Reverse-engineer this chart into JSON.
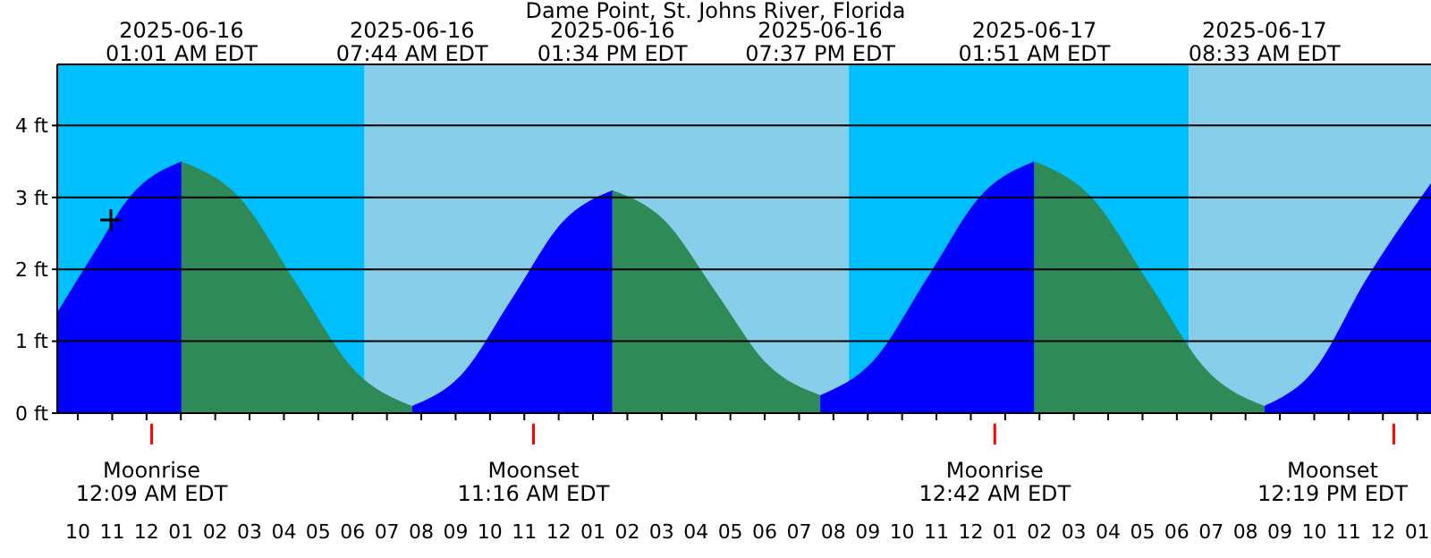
{
  "chart_data": {
    "type": "area",
    "title": "Dame Point, St. Johns River, Florida",
    "series": [
      {
        "color": "#0000ff",
        "x": [
          "2025-06-15T21:24",
          "2025-06-15T22:30",
          "2025-06-15T23:30",
          "2025-06-16T01:01"
        ],
        "values": [
          1.4,
          2.25,
          3.0,
          3.5
        ]
      },
      {
        "color": "#2e8b57",
        "x": [
          "2025-06-16T01:01",
          "2025-06-16T02:42",
          "2025-06-16T04:22",
          "2025-06-16T06:03",
          "2025-06-16T07:44"
        ],
        "values": [
          3.5,
          3.0,
          1.8,
          0.6,
          0.1
        ]
      },
      {
        "color": "#0000ff",
        "x": [
          "2025-06-16T07:44",
          "2025-06-16T09:11",
          "2025-06-16T10:39",
          "2025-06-16T12:07",
          "2025-06-16T13:34"
        ],
        "values": [
          0.1,
          0.54,
          1.6,
          2.66,
          3.1
        ]
      },
      {
        "color": "#2e8b57",
        "x": [
          "2025-06-16T13:34",
          "2025-06-16T15:05",
          "2025-06-16T16:35",
          "2025-06-16T18:06",
          "2025-06-16T19:37"
        ],
        "values": [
          3.1,
          2.68,
          1.68,
          0.67,
          0.25
        ]
      },
      {
        "color": "#0000ff",
        "x": [
          "2025-06-16T19:37",
          "2025-06-16T21:10",
          "2025-06-16T22:44",
          "2025-06-17T00:17",
          "2025-06-17T01:51"
        ],
        "values": [
          0.25,
          0.73,
          1.88,
          3.02,
          3.5
        ]
      },
      {
        "color": "#2e8b57",
        "x": [
          "2025-06-17T01:51",
          "2025-06-17T03:31",
          "2025-06-17T05:12",
          "2025-06-17T06:52",
          "2025-06-17T08:33"
        ],
        "values": [
          3.5,
          3.0,
          1.8,
          0.6,
          0.1
        ]
      },
      {
        "color": "#0000ff",
        "x": [
          "2025-06-17T08:33",
          "2025-06-17T10:00",
          "2025-06-17T11:30",
          "2025-06-17T13:24"
        ],
        "values": [
          0.1,
          0.6,
          1.85,
          3.2
        ]
      }
    ],
    "xlim": [
      "2025-06-15T21:24",
      "2025-06-17T13:24"
    ],
    "xticks": [
      {
        "value": "2025-06-15T22:00",
        "label": "10"
      },
      {
        "value": "2025-06-15T23:00",
        "label": "11"
      },
      {
        "value": "2025-06-16T00:00",
        "label": "12"
      },
      {
        "value": "2025-06-16T01:00",
        "label": "01"
      },
      {
        "value": "2025-06-16T02:00",
        "label": "02"
      },
      {
        "value": "2025-06-16T03:00",
        "label": "03"
      },
      {
        "value": "2025-06-16T04:00",
        "label": "04"
      },
      {
        "value": "2025-06-16T05:00",
        "label": "05"
      },
      {
        "value": "2025-06-16T06:00",
        "label": "06"
      },
      {
        "value": "2025-06-16T07:00",
        "label": "07"
      },
      {
        "value": "2025-06-16T08:00",
        "label": "08"
      },
      {
        "value": "2025-06-16T09:00",
        "label": "09"
      },
      {
        "value": "2025-06-16T10:00",
        "label": "10"
      },
      {
        "value": "2025-06-16T11:00",
        "label": "11"
      },
      {
        "value": "2025-06-16T12:00",
        "label": "12"
      },
      {
        "value": "2025-06-16T13:00",
        "label": "01"
      },
      {
        "value": "2025-06-16T14:00",
        "label": "02"
      },
      {
        "value": "2025-06-16T15:00",
        "label": "03"
      },
      {
        "value": "2025-06-16T16:00",
        "label": "04"
      },
      {
        "value": "2025-06-16T17:00",
        "label": "05"
      },
      {
        "value": "2025-06-16T18:00",
        "label": "06"
      },
      {
        "value": "2025-06-16T19:00",
        "label": "07"
      },
      {
        "value": "2025-06-16T20:00",
        "label": "08"
      },
      {
        "value": "2025-06-16T21:00",
        "label": "09"
      },
      {
        "value": "2025-06-16T22:00",
        "label": "10"
      },
      {
        "value": "2025-06-16T23:00",
        "label": "11"
      },
      {
        "value": "2025-06-17T00:00",
        "label": "12"
      },
      {
        "value": "2025-06-17T01:00",
        "label": "01"
      },
      {
        "value": "2025-06-17T02:00",
        "label": "02"
      },
      {
        "value": "2025-06-17T03:00",
        "label": "03"
      },
      {
        "value": "2025-06-17T04:00",
        "label": "04"
      },
      {
        "value": "2025-06-17T05:00",
        "label": "05"
      },
      {
        "value": "2025-06-17T06:00",
        "label": "06"
      },
      {
        "value": "2025-06-17T07:00",
        "label": "07"
      },
      {
        "value": "2025-06-17T08:00",
        "label": "08"
      },
      {
        "value": "2025-06-17T09:00",
        "label": "09"
      },
      {
        "value": "2025-06-17T10:00",
        "label": "10"
      },
      {
        "value": "2025-06-17T11:00",
        "label": "11"
      },
      {
        "value": "2025-06-17T12:00",
        "label": "12"
      },
      {
        "value": "2025-06-17T13:00",
        "label": "01"
      }
    ],
    "x2lim": [
      "2025-06-15T21:24",
      "2025-06-17T13:24"
    ],
    "x2ticks": [
      {
        "value": "2025-06-16T01:01",
        "label": "2025-06-16\n01:01 AM EDT"
      },
      {
        "value": "2025-06-16T07:44",
        "label": "2025-06-16\n07:44 AM EDT"
      },
      {
        "value": "2025-06-16T13:34",
        "label": "2025-06-16\n01:34 PM EDT"
      },
      {
        "value": "2025-06-16T19:37",
        "label": "2025-06-16\n07:37 PM EDT"
      },
      {
        "value": "2025-06-17T01:51",
        "label": "2025-06-17\n01:51 AM EDT"
      },
      {
        "value": "2025-06-17T08:33",
        "label": "2025-06-17\n08:33 AM EDT"
      }
    ],
    "ylim": [
      0,
      4.85
    ],
    "yticks": [
      {
        "value": 0,
        "label": "0 ft"
      },
      {
        "value": 1,
        "label": "1 ft"
      },
      {
        "value": 2,
        "label": "2 ft"
      },
      {
        "value": 3,
        "label": "3 ft"
      },
      {
        "value": 4,
        "label": "4 ft"
      }
    ],
    "grid": "y",
    "bands": [
      {
        "axis": "x",
        "from": "2025-06-15T21:24",
        "to": "2025-06-16T06:21",
        "color": "#00bfff"
      },
      {
        "axis": "x",
        "from": "2025-06-16T06:21",
        "to": "2025-06-16T20:27",
        "color": "#87ceeb"
      },
      {
        "axis": "x",
        "from": "2025-06-16T20:27",
        "to": "2025-06-17T06:21",
        "color": "#00bfff"
      },
      {
        "axis": "x",
        "from": "2025-06-17T06:21",
        "to": "2025-06-17T13:24",
        "color": "#87ceeb"
      }
    ],
    "ref_lines": [
      {
        "axis": "x",
        "value": "2025-06-16T00:09",
        "label": "Moonrise\n12:09 AM EDT",
        "color": "#ff0000"
      },
      {
        "axis": "x",
        "value": "2025-06-16T11:16",
        "label": "Moonset\n11:16 AM EDT",
        "color": "#ff0000"
      },
      {
        "axis": "x",
        "value": "2025-06-17T00:42",
        "label": "Moonrise\n12:42 AM EDT",
        "color": "#ff0000"
      },
      {
        "axis": "x",
        "value": "2025-06-17T12:19",
        "label": "Moonset\n12:19 PM EDT",
        "color": "#ff0000"
      }
    ]
  }
}
